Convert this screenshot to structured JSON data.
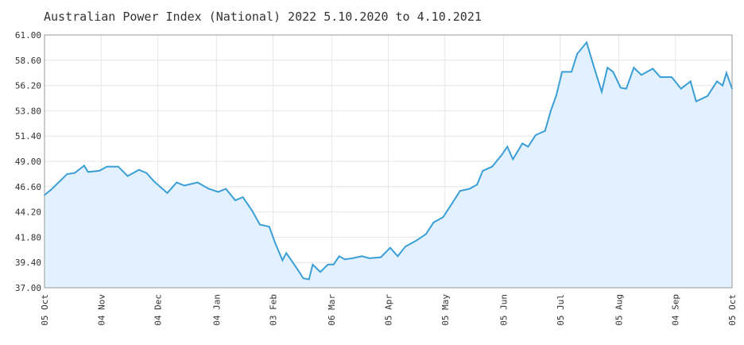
{
  "chart_data": {
    "type": "area",
    "title": "Australian Power Index (National) 2022 5.10.2020 to 4.10.2021",
    "xlabel": "",
    "ylabel": "",
    "ylim": [
      37.0,
      61.0
    ],
    "xlim_days": [
      0,
      364
    ],
    "grid": true,
    "colors": {
      "line": "#3a9fd6",
      "fill": "#e2f1fd",
      "grid": "#e6e6e6",
      "axis": "#999999"
    },
    "y_ticks": [
      "61.00",
      "58.60",
      "56.20",
      "53.80",
      "51.40",
      "49.00",
      "46.60",
      "44.20",
      "41.80",
      "39.40",
      "37.00"
    ],
    "x_ticks": [
      {
        "label": "05 Oct",
        "day": 0
      },
      {
        "label": "04 Nov",
        "day": 30
      },
      {
        "label": "04 Dec",
        "day": 60
      },
      {
        "label": "04 Jan",
        "day": 91
      },
      {
        "label": "03 Feb",
        "day": 121
      },
      {
        "label": "06 Mar",
        "day": 152
      },
      {
        "label": "05 Apr",
        "day": 182
      },
      {
        "label": "05 May",
        "day": 212
      },
      {
        "label": "05 Jun",
        "day": 243
      },
      {
        "label": "05 Jul",
        "day": 273
      },
      {
        "label": "05 Aug",
        "day": 304
      },
      {
        "label": "04 Sep",
        "day": 334
      },
      {
        "label": "05 Oct",
        "day": 364
      }
    ],
    "series": [
      {
        "name": "Australian Power Index (National) 2022",
        "x_days": [
          0,
          4,
          8,
          12,
          16,
          21,
          23,
          29,
          33,
          39,
          44,
          50,
          54,
          58,
          65,
          70,
          74,
          81,
          87,
          92,
          96,
          101,
          105,
          110,
          114,
          119,
          122,
          126,
          128,
          133,
          137,
          140,
          142,
          146,
          150,
          153,
          156,
          159,
          163,
          168,
          172,
          178,
          183,
          187,
          191,
          197,
          202,
          206,
          211,
          215,
          220,
          225,
          229,
          232,
          237,
          242,
          245,
          248,
          253,
          256,
          260,
          265,
          268,
          271,
          274,
          279,
          282,
          287,
          291,
          295,
          298,
          301,
          305,
          308,
          312,
          316,
          322,
          326,
          332,
          337,
          342,
          345,
          351,
          356,
          359,
          361,
          364
        ],
        "values": [
          45.8,
          46.4,
          47.1,
          47.8,
          47.9,
          48.6,
          48.0,
          48.1,
          48.5,
          48.5,
          47.6,
          48.2,
          47.9,
          47.1,
          46.0,
          47.0,
          46.7,
          47.0,
          46.4,
          46.1,
          46.4,
          45.3,
          45.6,
          44.3,
          43.0,
          42.8,
          41.3,
          39.6,
          40.3,
          39.0,
          37.9,
          37.8,
          39.2,
          38.5,
          39.2,
          39.2,
          40.0,
          39.7,
          39.8,
          40.0,
          39.8,
          39.9,
          40.8,
          40.0,
          40.9,
          41.5,
          42.1,
          43.2,
          43.7,
          44.8,
          46.2,
          46.4,
          46.8,
          48.1,
          48.5,
          49.6,
          50.4,
          49.2,
          50.7,
          50.4,
          51.5,
          51.9,
          53.8,
          55.3,
          57.5,
          57.5,
          59.2,
          60.3,
          57.9,
          55.6,
          57.9,
          57.5,
          56.0,
          55.9,
          57.9,
          57.2,
          57.8,
          57.0,
          57.0,
          55.9,
          56.6,
          54.7,
          55.2,
          56.6,
          56.2,
          57.4,
          55.9
        ]
      }
    ]
  }
}
